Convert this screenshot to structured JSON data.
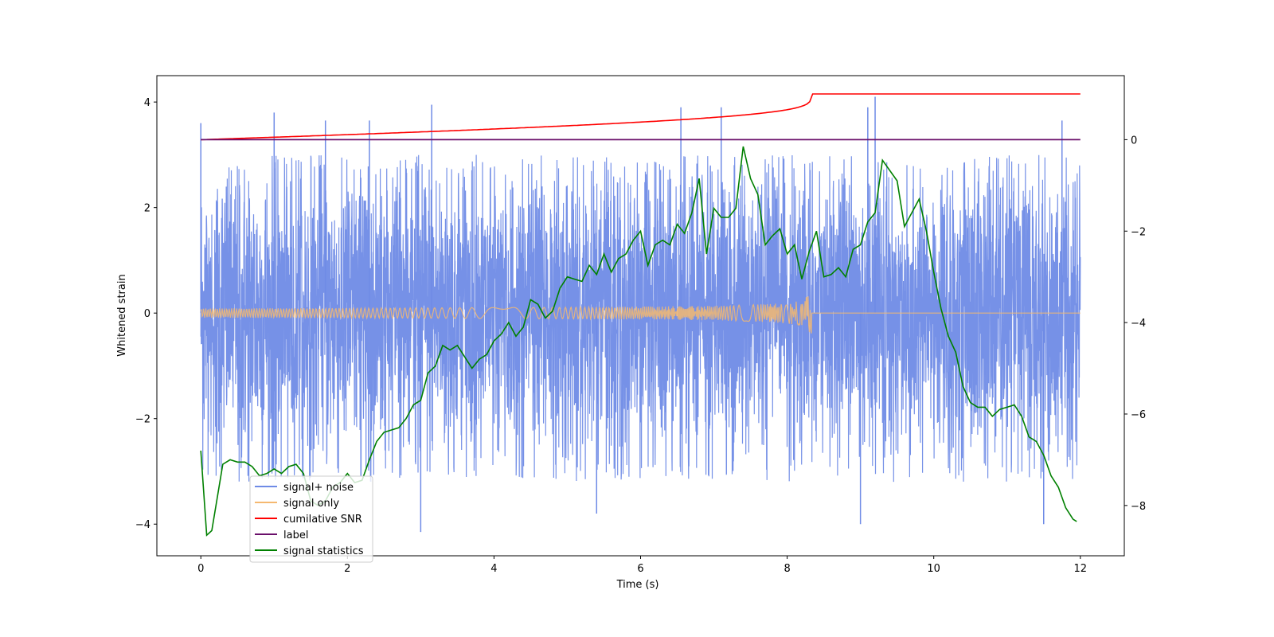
{
  "chart_data": {
    "type": "line",
    "xlabel": "Time (s)",
    "ylabel_left": "Whitened strain",
    "ylabel_right": "",
    "xlim": [
      -0.6,
      12.6
    ],
    "ylim_left": [
      -4.6,
      4.5
    ],
    "ylim_right": [
      -9.1,
      1.4
    ],
    "x_ticks": [
      0,
      2,
      4,
      6,
      8,
      10,
      12
    ],
    "y_ticks_left": [
      -4,
      -2,
      0,
      2,
      4
    ],
    "y_ticks_right": [
      -8,
      -6,
      -4,
      -2,
      0
    ],
    "grid": false,
    "legend_position": "lower-left",
    "series": [
      {
        "name": "signal+ noise",
        "axis": "left",
        "color": "#6f8be6",
        "x_range": [
          0,
          12
        ],
        "envelope": {
          "typical_amplitude": 1.6,
          "max": 4.0,
          "min": -4.15
        },
        "spikes": [
          [
            0.0,
            3.6
          ],
          [
            1.0,
            3.8
          ],
          [
            1.7,
            3.65
          ],
          [
            2.3,
            3.65
          ],
          [
            3.15,
            3.95
          ],
          [
            3.0,
            -4.15
          ],
          [
            5.4,
            -3.8
          ],
          [
            6.55,
            3.9
          ],
          [
            7.1,
            3.9
          ],
          [
            9.0,
            -4.0
          ],
          [
            9.2,
            4.1
          ],
          [
            9.1,
            3.9
          ],
          [
            11.5,
            -4.0
          ],
          [
            11.75,
            3.65
          ]
        ]
      },
      {
        "name": "signal only",
        "axis": "left",
        "color": "#f5b870",
        "x_range": [
          0,
          12
        ],
        "chirp_end": 8.33,
        "peak_amplitude": 0.4
      },
      {
        "name": "cumilative SNR",
        "axis": "right",
        "color": "#ff0000",
        "points": [
          [
            0,
            0.0
          ],
          [
            2,
            0.1
          ],
          [
            4,
            0.2
          ],
          [
            6,
            0.35
          ],
          [
            7,
            0.5
          ],
          [
            7.5,
            0.62
          ],
          [
            7.8,
            0.75
          ],
          [
            8.0,
            0.85
          ],
          [
            8.2,
            1.0
          ],
          [
            8.33,
            1.0
          ],
          [
            12,
            1.0
          ]
        ]
      },
      {
        "name": "label",
        "axis": "right",
        "color": "#6a0f6a",
        "points": [
          [
            0,
            0
          ],
          [
            12,
            0
          ]
        ]
      },
      {
        "name": "signal statistics",
        "axis": "right",
        "color": "#008000",
        "points": [
          [
            0.0,
            -6.8
          ],
          [
            0.08,
            -8.65
          ],
          [
            0.15,
            -8.55
          ],
          [
            0.3,
            -7.1
          ],
          [
            0.4,
            -7.0
          ],
          [
            0.5,
            -7.05
          ],
          [
            0.6,
            -7.05
          ],
          [
            0.7,
            -7.15
          ],
          [
            0.8,
            -7.35
          ],
          [
            0.9,
            -7.3
          ],
          [
            1.0,
            -7.2
          ],
          [
            1.1,
            -7.3
          ],
          [
            1.2,
            -7.15
          ],
          [
            1.3,
            -7.1
          ],
          [
            1.4,
            -7.3
          ],
          [
            1.5,
            -7.9
          ],
          [
            1.6,
            -8.0
          ],
          [
            1.7,
            -7.9
          ],
          [
            1.8,
            -7.6
          ],
          [
            1.9,
            -7.5
          ],
          [
            2.0,
            -7.3
          ],
          [
            2.1,
            -7.5
          ],
          [
            2.2,
            -7.45
          ],
          [
            2.3,
            -7.0
          ],
          [
            2.4,
            -6.6
          ],
          [
            2.5,
            -6.4
          ],
          [
            2.7,
            -6.3
          ],
          [
            2.8,
            -6.1
          ],
          [
            2.9,
            -5.8
          ],
          [
            3.0,
            -5.7
          ],
          [
            3.1,
            -5.1
          ],
          [
            3.2,
            -4.95
          ],
          [
            3.3,
            -4.5
          ],
          [
            3.4,
            -4.6
          ],
          [
            3.5,
            -4.5
          ],
          [
            3.6,
            -4.75
          ],
          [
            3.7,
            -5.0
          ],
          [
            3.8,
            -4.8
          ],
          [
            3.9,
            -4.7
          ],
          [
            4.0,
            -4.4
          ],
          [
            4.1,
            -4.25
          ],
          [
            4.2,
            -4.0
          ],
          [
            4.3,
            -4.3
          ],
          [
            4.4,
            -4.1
          ],
          [
            4.5,
            -3.5
          ],
          [
            4.6,
            -3.6
          ],
          [
            4.7,
            -3.9
          ],
          [
            4.8,
            -3.75
          ],
          [
            4.9,
            -3.25
          ],
          [
            5.0,
            -3.0
          ],
          [
            5.1,
            -3.05
          ],
          [
            5.2,
            -3.1
          ],
          [
            5.3,
            -2.75
          ],
          [
            5.4,
            -2.95
          ],
          [
            5.5,
            -2.5
          ],
          [
            5.6,
            -2.9
          ],
          [
            5.7,
            -2.6
          ],
          [
            5.8,
            -2.5
          ],
          [
            5.9,
            -2.2
          ],
          [
            6.0,
            -2.0
          ],
          [
            6.1,
            -2.75
          ],
          [
            6.2,
            -2.3
          ],
          [
            6.3,
            -2.2
          ],
          [
            6.4,
            -2.3
          ],
          [
            6.5,
            -1.85
          ],
          [
            6.6,
            -2.05
          ],
          [
            6.7,
            -1.6
          ],
          [
            6.8,
            -0.85
          ],
          [
            6.9,
            -2.5
          ],
          [
            7.0,
            -1.5
          ],
          [
            7.1,
            -1.7
          ],
          [
            7.2,
            -1.7
          ],
          [
            7.3,
            -1.5
          ],
          [
            7.4,
            -0.15
          ],
          [
            7.5,
            -0.85
          ],
          [
            7.6,
            -1.2
          ],
          [
            7.7,
            -2.3
          ],
          [
            7.8,
            -2.1
          ],
          [
            7.9,
            -1.95
          ],
          [
            8.0,
            -2.5
          ],
          [
            8.1,
            -2.3
          ],
          [
            8.2,
            -3.05
          ],
          [
            8.3,
            -2.45
          ],
          [
            8.4,
            -2.0
          ],
          [
            8.5,
            -3.0
          ],
          [
            8.6,
            -2.95
          ],
          [
            8.7,
            -2.8
          ],
          [
            8.8,
            -3.0
          ],
          [
            8.9,
            -2.4
          ],
          [
            9.0,
            -2.3
          ],
          [
            9.1,
            -1.8
          ],
          [
            9.2,
            -1.6
          ],
          [
            9.3,
            -0.45
          ],
          [
            9.5,
            -0.9
          ],
          [
            9.6,
            -1.9
          ],
          [
            9.8,
            -1.3
          ],
          [
            9.9,
            -2.0
          ],
          [
            10.0,
            -2.9
          ],
          [
            10.1,
            -3.7
          ],
          [
            10.2,
            -4.3
          ],
          [
            10.3,
            -4.65
          ],
          [
            10.4,
            -5.4
          ],
          [
            10.5,
            -5.75
          ],
          [
            10.6,
            -5.85
          ],
          [
            10.7,
            -5.85
          ],
          [
            10.8,
            -6.05
          ],
          [
            10.9,
            -5.9
          ],
          [
            11.0,
            -5.85
          ],
          [
            11.1,
            -5.8
          ],
          [
            11.2,
            -6.05
          ],
          [
            11.3,
            -6.5
          ],
          [
            11.4,
            -6.6
          ],
          [
            11.5,
            -6.9
          ],
          [
            11.6,
            -7.35
          ],
          [
            11.7,
            -7.6
          ],
          [
            11.8,
            -8.05
          ],
          [
            11.9,
            -8.3
          ],
          [
            11.95,
            -8.35
          ]
        ]
      }
    ]
  }
}
